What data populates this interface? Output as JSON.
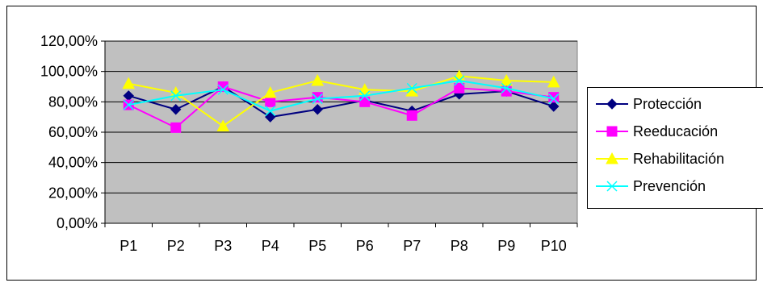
{
  "chart_data": {
    "type": "line",
    "title": "",
    "xlabel": "",
    "ylabel": "",
    "categories": [
      "P1",
      "P2",
      "P3",
      "P4",
      "P5",
      "P6",
      "P7",
      "P8",
      "P9",
      "P10"
    ],
    "ylim": [
      0,
      1.2
    ],
    "y_ticks": [
      "0,00%",
      "20,00%",
      "40,00%",
      "60,00%",
      "80,00%",
      "100,00%",
      "120,00%"
    ],
    "grid": "horizontal",
    "plot_background": "#c0c0c0",
    "legend_position": "right",
    "series": [
      {
        "name": "Protección",
        "color": "#000080",
        "marker": "diamond",
        "values": [
          0.84,
          0.75,
          0.9,
          0.7,
          0.75,
          0.81,
          0.74,
          0.85,
          0.87,
          0.77
        ]
      },
      {
        "name": "Reeducación",
        "color": "#ff00ff",
        "marker": "square",
        "values": [
          0.78,
          0.63,
          0.9,
          0.8,
          0.83,
          0.8,
          0.71,
          0.89,
          0.87,
          0.83
        ]
      },
      {
        "name": "Rehabilitación",
        "color": "#ffff00",
        "marker": "triangle",
        "values": [
          0.92,
          0.86,
          0.64,
          0.86,
          0.94,
          0.88,
          0.87,
          0.97,
          0.94,
          0.93
        ]
      },
      {
        "name": "Prevención",
        "color": "#00ffff",
        "marker": "x",
        "values": [
          0.78,
          0.84,
          0.88,
          0.74,
          0.82,
          0.84,
          0.89,
          0.94,
          0.89,
          0.82
        ]
      }
    ]
  }
}
